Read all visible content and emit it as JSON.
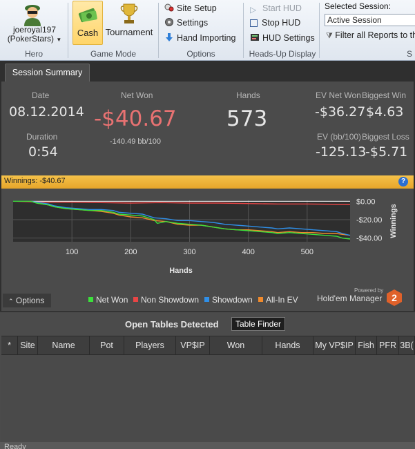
{
  "ribbon": {
    "hero": {
      "name": "joeroyal197",
      "site": "(PokerStars)",
      "group_label": "Hero",
      "avatar_icon": "hero-avatar-icon"
    },
    "game_mode": {
      "cash_label": "Cash",
      "tournament_label": "Tournament",
      "group_label": "Game Mode",
      "cash_selected": true
    },
    "options": {
      "site_setup": "Site Setup",
      "settings": "Settings",
      "hand_importing": "Hand Importing",
      "group_label": "Options"
    },
    "hud": {
      "start_hud": "Start HUD",
      "stop_hud": "Stop HUD",
      "hud_settings": "HUD Settings",
      "group_label": "Heads-Up Display"
    },
    "session": {
      "selected_label": "Selected Session:",
      "selected_value": "Active Session",
      "filter_label": "Filter all Reports to the S",
      "group_label": "S"
    }
  },
  "tabs": {
    "session_summary": "Session Summary"
  },
  "summary": {
    "date_label": "Date",
    "date_value": "08.12.2014",
    "duration_label": "Duration",
    "duration_value": "0:54",
    "net_won_label": "Net Won",
    "net_won_value": "-$40.67",
    "net_won_bb": "-140.49 bb/100",
    "hands_label": "Hands",
    "hands_value": "573",
    "ev_net_won_label": "EV Net Won",
    "ev_net_won_value": "-$36.27",
    "biggest_win_label": "Biggest Win",
    "biggest_win_value": "$4.63",
    "ev_bb_label": "EV (bb/100)",
    "ev_bb_value": "-125.13",
    "biggest_loss_label": "Biggest Loss",
    "biggest_loss_value": "-$5.71"
  },
  "winnings_bar": {
    "text": "Winnings: -$40.67",
    "help": "?"
  },
  "chart_data": {
    "type": "line",
    "xlabel": "Hands",
    "ylabel": "Winnings",
    "xlim": [
      0,
      573
    ],
    "ylim": [
      -44,
      1
    ],
    "x_ticks": [
      100,
      200,
      300,
      400,
      500
    ],
    "y_ticks": [
      0,
      -20,
      -40
    ],
    "y_tick_labels": [
      "$0.00",
      "-$20.00",
      "-$40.00"
    ],
    "grid": true,
    "colors": {
      "Net Won": "#3be03b",
      "Non Showdown": "#e84545",
      "Showdown": "#2f8fe8",
      "All-In EV": "#f08a2c",
      "zero": "#ffffff"
    },
    "series": [
      {
        "name": "Net Won",
        "x": [
          0,
          30,
          40,
          60,
          70,
          90,
          110,
          130,
          150,
          170,
          180,
          200,
          220,
          240,
          245,
          260,
          280,
          300,
          320,
          340,
          360,
          380,
          400,
          420,
          440,
          450,
          470,
          490,
          510,
          530,
          550,
          560,
          573
        ],
        "y": [
          0,
          0,
          -2,
          -4,
          -6,
          -8,
          -9,
          -10,
          -10,
          -12,
          -14,
          -15,
          -16,
          -20,
          -24,
          -22,
          -24,
          -25,
          -26,
          -28,
          -30,
          -31,
          -32,
          -33,
          -34,
          -35,
          -34,
          -35,
          -36,
          -37,
          -38,
          -40,
          -41
        ]
      },
      {
        "name": "Non Showdown",
        "x": [
          0,
          50,
          100,
          150,
          200,
          250,
          300,
          350,
          400,
          450,
          500,
          573
        ],
        "y": [
          0,
          -1,
          -1,
          -1.5,
          -2,
          -1.5,
          -2,
          -2,
          -2.5,
          -3,
          -3,
          -3.5
        ]
      },
      {
        "name": "Showdown",
        "x": [
          0,
          30,
          40,
          60,
          70,
          90,
          110,
          130,
          150,
          170,
          180,
          200,
          220,
          240,
          260,
          280,
          300,
          320,
          340,
          360,
          380,
          400,
          420,
          440,
          450,
          470,
          490,
          510,
          530,
          550,
          560,
          573
        ],
        "y": [
          0,
          0,
          -1,
          -3,
          -5,
          -7,
          -8,
          -9,
          -9,
          -10,
          -12,
          -13,
          -14,
          -18,
          -19,
          -21,
          -21,
          -22,
          -23,
          -25,
          -26,
          -27,
          -28,
          -29,
          -30,
          -29,
          -30,
          -31,
          -32,
          -33,
          -35,
          -37
        ]
      },
      {
        "name": "All-In EV",
        "x": [
          0,
          30,
          40,
          60,
          70,
          90,
          110,
          130,
          150,
          170,
          180,
          200,
          220,
          240,
          260,
          280,
          300,
          320,
          340,
          360,
          380,
          400,
          420,
          440,
          450,
          470,
          490,
          510,
          530,
          550,
          560,
          573
        ],
        "y": [
          0,
          0,
          -2,
          -4,
          -6,
          -8,
          -9,
          -10,
          -11,
          -13,
          -15,
          -17,
          -18,
          -21,
          -22,
          -25,
          -26,
          -26,
          -28,
          -30,
          -31,
          -31,
          -32,
          -33,
          -34,
          -33,
          -34,
          -34,
          -35,
          -35,
          -36,
          -37
        ]
      }
    ]
  },
  "chart_ui": {
    "options_label": "Options",
    "powered_by": "Powered by",
    "brand": "Hold'em Manager",
    "brand_logo_number": "2"
  },
  "open_tables": {
    "title": "Open Tables Detected",
    "table_finder": "Table Finder",
    "columns": [
      "*",
      "Site",
      "Name",
      "Pot",
      "Players",
      "VP$IP",
      "Won",
      "Hands",
      "My VP$IP",
      "Fish",
      "PFR",
      "3B("
    ]
  },
  "status": {
    "text": "Ready"
  }
}
